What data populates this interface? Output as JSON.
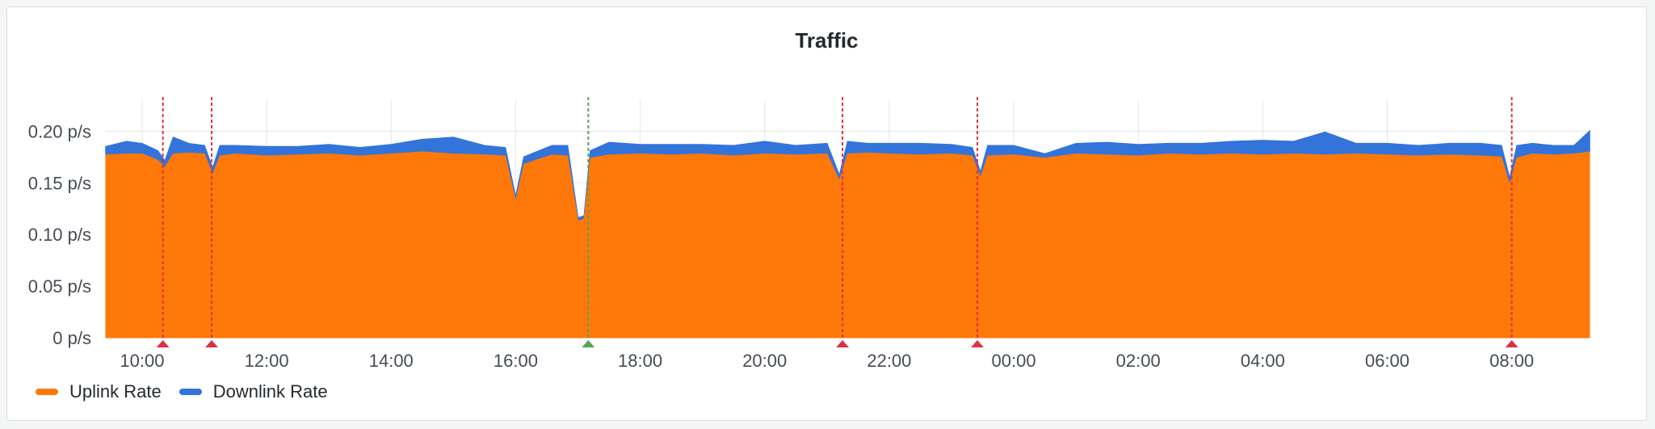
{
  "panel": {
    "title": "Traffic"
  },
  "colors": {
    "uplink": "#ff780a",
    "downlink": "#3274d9",
    "grid": "#e6e7e8",
    "annotation_alert": "#e02f44",
    "annotation_ok": "#56a64b"
  },
  "chart_data": {
    "type": "area",
    "stacked": true,
    "title": "Traffic",
    "xlabel": "",
    "ylabel": "",
    "x_start": "09:25",
    "x_end": "09:15",
    "x_ticks": [
      "10:00",
      "12:00",
      "14:00",
      "16:00",
      "18:00",
      "20:00",
      "22:00",
      "00:00",
      "02:00",
      "04:00",
      "06:00",
      "08:00"
    ],
    "y_ticks": [
      "0 p/s",
      "0.05 p/s",
      "0.10 p/s",
      "0.15 p/s",
      "0.20 p/s"
    ],
    "ylim": [
      0,
      0.23
    ],
    "grid": true,
    "legend_position": "bottom-left",
    "series": [
      {
        "name": "Uplink Rate",
        "color": "#ff780a",
        "points": [
          [
            "09:25",
            0.177
          ],
          [
            "09:45",
            0.178
          ],
          [
            "10:00",
            0.178
          ],
          [
            "10:15",
            0.172
          ],
          [
            "10:22",
            0.165
          ],
          [
            "10:30",
            0.178
          ],
          [
            "10:45",
            0.179
          ],
          [
            "11:00",
            0.178
          ],
          [
            "11:08",
            0.158
          ],
          [
            "11:15",
            0.176
          ],
          [
            "11:30",
            0.178
          ],
          [
            "12:00",
            0.176
          ],
          [
            "12:30",
            0.177
          ],
          [
            "13:00",
            0.178
          ],
          [
            "13:30",
            0.176
          ],
          [
            "14:00",
            0.178
          ],
          [
            "14:30",
            0.18
          ],
          [
            "15:00",
            0.178
          ],
          [
            "15:30",
            0.177
          ],
          [
            "15:50",
            0.176
          ],
          [
            "16:00",
            0.132
          ],
          [
            "16:08",
            0.168
          ],
          [
            "16:20",
            0.172
          ],
          [
            "16:35",
            0.177
          ],
          [
            "16:50",
            0.176
          ],
          [
            "17:00",
            0.113
          ],
          [
            "17:06",
            0.115
          ],
          [
            "17:12",
            0.174
          ],
          [
            "17:30",
            0.177
          ],
          [
            "18:00",
            0.178
          ],
          [
            "18:30",
            0.177
          ],
          [
            "19:00",
            0.178
          ],
          [
            "19:30",
            0.176
          ],
          [
            "20:00",
            0.178
          ],
          [
            "20:30",
            0.177
          ],
          [
            "21:00",
            0.178
          ],
          [
            "21:12",
            0.152
          ],
          [
            "21:20",
            0.178
          ],
          [
            "21:40",
            0.179
          ],
          [
            "22:00",
            0.178
          ],
          [
            "22:30",
            0.177
          ],
          [
            "23:00",
            0.178
          ],
          [
            "23:20",
            0.176
          ],
          [
            "23:28",
            0.155
          ],
          [
            "23:35",
            0.176
          ],
          [
            "00:00",
            0.177
          ],
          [
            "00:30",
            0.174
          ],
          [
            "01:00",
            0.178
          ],
          [
            "01:30",
            0.177
          ],
          [
            "02:00",
            0.176
          ],
          [
            "02:30",
            0.178
          ],
          [
            "03:00",
            0.177
          ],
          [
            "03:30",
            0.178
          ],
          [
            "04:00",
            0.177
          ],
          [
            "04:30",
            0.178
          ],
          [
            "05:00",
            0.177
          ],
          [
            "05:30",
            0.178
          ],
          [
            "06:00",
            0.177
          ],
          [
            "06:30",
            0.176
          ],
          [
            "07:00",
            0.177
          ],
          [
            "07:30",
            0.176
          ],
          [
            "07:50",
            0.175
          ],
          [
            "07:58",
            0.148
          ],
          [
            "08:05",
            0.174
          ],
          [
            "08:20",
            0.178
          ],
          [
            "08:40",
            0.177
          ],
          [
            "09:00",
            0.178
          ],
          [
            "09:15",
            0.18
          ]
        ]
      },
      {
        "name": "Downlink Rate",
        "color": "#3274d9",
        "points": [
          [
            "09:25",
            0.008
          ],
          [
            "09:45",
            0.012
          ],
          [
            "10:00",
            0.01
          ],
          [
            "10:15",
            0.009
          ],
          [
            "10:22",
            0.006
          ],
          [
            "10:30",
            0.016
          ],
          [
            "10:45",
            0.009
          ],
          [
            "11:00",
            0.008
          ],
          [
            "11:08",
            0.006
          ],
          [
            "11:15",
            0.01
          ],
          [
            "11:30",
            0.008
          ],
          [
            "12:00",
            0.009
          ],
          [
            "12:30",
            0.008
          ],
          [
            "13:00",
            0.009
          ],
          [
            "13:30",
            0.008
          ],
          [
            "14:00",
            0.009
          ],
          [
            "14:30",
            0.012
          ],
          [
            "15:00",
            0.016
          ],
          [
            "15:30",
            0.009
          ],
          [
            "15:50",
            0.008
          ],
          [
            "16:00",
            0.004
          ],
          [
            "16:08",
            0.007
          ],
          [
            "16:20",
            0.008
          ],
          [
            "16:35",
            0.009
          ],
          [
            "16:50",
            0.01
          ],
          [
            "17:00",
            0.003
          ],
          [
            "17:06",
            0.003
          ],
          [
            "17:12",
            0.007
          ],
          [
            "17:30",
            0.012
          ],
          [
            "18:00",
            0.009
          ],
          [
            "18:30",
            0.01
          ],
          [
            "19:00",
            0.009
          ],
          [
            "19:30",
            0.01
          ],
          [
            "20:00",
            0.012
          ],
          [
            "20:30",
            0.009
          ],
          [
            "21:00",
            0.01
          ],
          [
            "21:12",
            0.005
          ],
          [
            "21:20",
            0.012
          ],
          [
            "21:40",
            0.009
          ],
          [
            "22:00",
            0.01
          ],
          [
            "22:30",
            0.011
          ],
          [
            "23:00",
            0.009
          ],
          [
            "23:20",
            0.008
          ],
          [
            "23:28",
            0.005
          ],
          [
            "23:35",
            0.01
          ],
          [
            "00:00",
            0.009
          ],
          [
            "00:30",
            0.004
          ],
          [
            "01:00",
            0.01
          ],
          [
            "01:30",
            0.012
          ],
          [
            "02:00",
            0.011
          ],
          [
            "02:30",
            0.01
          ],
          [
            "03:00",
            0.011
          ],
          [
            "03:30",
            0.012
          ],
          [
            "04:00",
            0.014
          ],
          [
            "04:30",
            0.012
          ],
          [
            "05:00",
            0.022
          ],
          [
            "05:30",
            0.01
          ],
          [
            "06:00",
            0.011
          ],
          [
            "06:30",
            0.01
          ],
          [
            "07:00",
            0.011
          ],
          [
            "07:30",
            0.012
          ],
          [
            "07:50",
            0.011
          ],
          [
            "07:58",
            0.006
          ],
          [
            "08:05",
            0.012
          ],
          [
            "08:20",
            0.01
          ],
          [
            "08:40",
            0.009
          ],
          [
            "09:00",
            0.008
          ],
          [
            "09:15",
            0.02
          ]
        ]
      }
    ],
    "annotations": [
      {
        "time": "10:20",
        "status": "alert"
      },
      {
        "time": "11:07",
        "status": "alert"
      },
      {
        "time": "17:10",
        "status": "ok"
      },
      {
        "time": "21:15",
        "status": "alert"
      },
      {
        "time": "23:25",
        "status": "alert"
      },
      {
        "time": "08:00",
        "status": "alert"
      }
    ]
  },
  "legend": {
    "items": [
      {
        "label": "Uplink Rate",
        "color": "#ff780a"
      },
      {
        "label": "Downlink Rate",
        "color": "#3274d9"
      }
    ]
  }
}
